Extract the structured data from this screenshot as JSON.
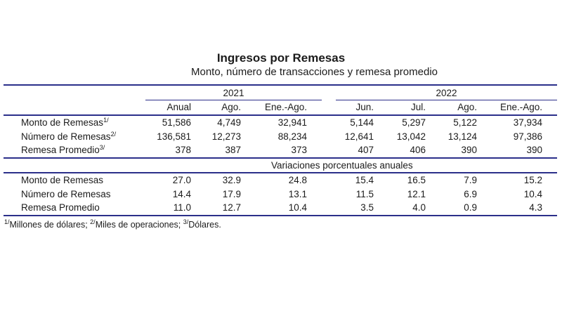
{
  "title": "Ingresos por Remesas",
  "subtitle": "Monto, número de transacciones y remesa promedio",
  "years": [
    "2021",
    "2022"
  ],
  "columns": [
    "Anual",
    "Ago.",
    "Ene.-Ago.",
    "Jun.",
    "Jul.",
    "Ago.",
    "Ene.-Ago."
  ],
  "levels": [
    {
      "label": "Monto de Remesas",
      "note": "1/",
      "values": [
        "51,586",
        "4,749",
        "32,941",
        "5,144",
        "5,297",
        "5,122",
        "37,934"
      ]
    },
    {
      "label": "Número de Remesas",
      "note": "2/",
      "values": [
        "136,581",
        "12,273",
        "88,234",
        "12,641",
        "13,042",
        "13,124",
        "97,386"
      ]
    },
    {
      "label": "Remesa Promedio",
      "note": "3/",
      "values": [
        "378",
        "387",
        "373",
        "407",
        "406",
        "390",
        "390"
      ]
    }
  ],
  "section_label": "Variaciones porcentuales anuales",
  "variations": [
    {
      "label": "Monto de Remesas",
      "values": [
        "27.0",
        "32.9",
        "24.8",
        "15.4",
        "16.5",
        "7.9",
        "15.2"
      ]
    },
    {
      "label": "Número de Remesas",
      "values": [
        "14.4",
        "17.9",
        "13.1",
        "11.5",
        "12.1",
        "6.9",
        "10.4"
      ]
    },
    {
      "label": "Remesa Promedio",
      "values": [
        "11.0",
        "12.7",
        "10.4",
        "3.5",
        "4.0",
        "0.9",
        "4.3"
      ]
    }
  ],
  "footnotes": [
    {
      "mark": "1/",
      "text": "Millones de dólares; "
    },
    {
      "mark": "2/",
      "text": "Miles de operaciones; "
    },
    {
      "mark": "3/",
      "text": "Dólares."
    }
  ],
  "colors": {
    "rule": "#2b2f8a",
    "text": "#1b1b1b"
  }
}
